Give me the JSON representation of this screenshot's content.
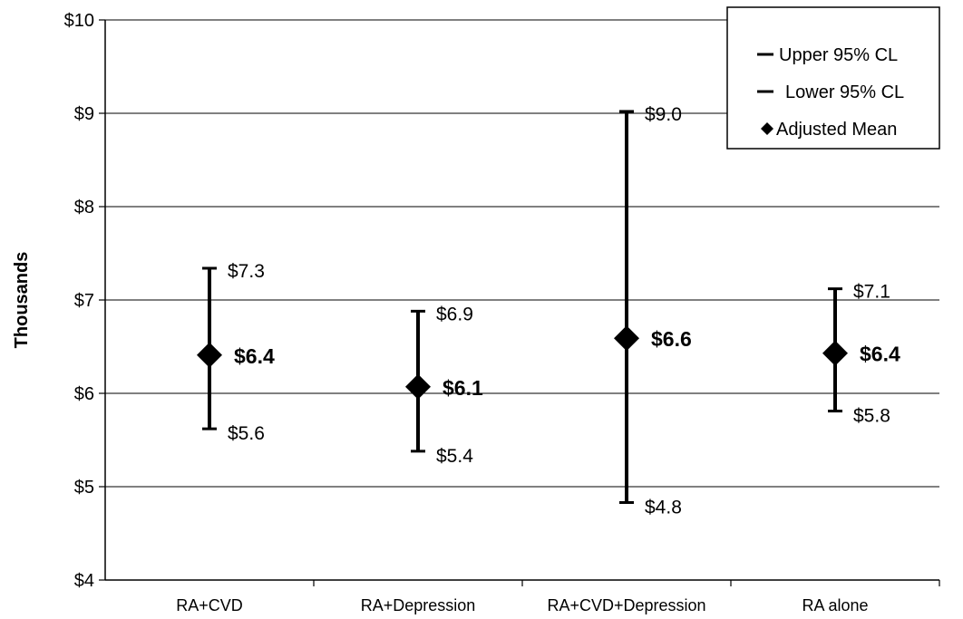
{
  "chart_data": {
    "type": "scatter",
    "title": "",
    "xlabel": "",
    "ylabel": "Thousands",
    "ylim": [
      4,
      10
    ],
    "yticks": [
      4,
      5,
      6,
      7,
      8,
      9,
      10
    ],
    "ytick_labels": [
      "$4",
      "$5",
      "$6",
      "$7",
      "$8",
      "$9",
      "$10"
    ],
    "grid": true,
    "legend_position": "top-right",
    "categories": [
      "RA+CVD",
      "RA+Depression",
      "RA+CVD+Depression",
      "RA alone"
    ],
    "series": [
      {
        "name": "Upper 95% CL",
        "values": [
          7.34,
          6.88,
          9.02,
          7.12
        ],
        "labels": [
          "$7.3",
          "$6.9",
          "$9.0",
          "$7.1"
        ]
      },
      {
        "name": "Lower 95% CL",
        "values": [
          5.62,
          5.38,
          4.83,
          5.81
        ],
        "labels": [
          "$5.6",
          "$5.4",
          "$4.8",
          "$5.8"
        ]
      },
      {
        "name": "Adjusted Mean",
        "values": [
          6.41,
          6.07,
          6.59,
          6.43
        ],
        "labels": [
          "$6.4",
          "$6.1",
          "$6.6",
          "$6.4"
        ]
      }
    ],
    "colors": {
      "marks": "#000000",
      "grid": "#000000",
      "background": "#ffffff"
    }
  }
}
